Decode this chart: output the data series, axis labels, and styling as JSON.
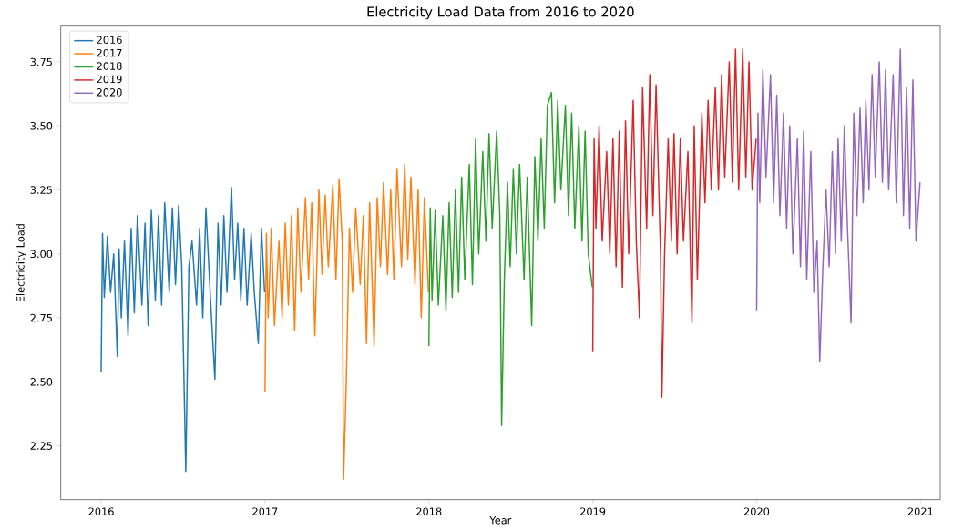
{
  "chart_data": {
    "type": "line",
    "title": "Electricity Load Data from 2016 to 2020",
    "xlabel": "Year",
    "ylabel": "Electricity Load",
    "xlim": [
      "2015-10-03",
      "2021-02-14"
    ],
    "ylim": [
      2.04,
      3.89
    ],
    "xticks": [
      {
        "value": "2016-01-01",
        "label": "2016"
      },
      {
        "value": "2017-01-01",
        "label": "2017"
      },
      {
        "value": "2018-01-01",
        "label": "2018"
      },
      {
        "value": "2019-01-01",
        "label": "2019"
      },
      {
        "value": "2020-01-01",
        "label": "2020"
      },
      {
        "value": "2021-01-01",
        "label": "2021"
      }
    ],
    "yticks": [
      2.25,
      {
        "value": 2.5,
        "label": "2.50"
      },
      2.75,
      {
        "value": 3.0,
        "label": "3.00"
      },
      3.25,
      {
        "value": 3.5,
        "label": "3.50"
      },
      3.75
    ],
    "legend": "top left",
    "marker": "none",
    "line_style": "solid",
    "series": [
      {
        "name": "2016",
        "color": "#1f77b4",
        "x": [
          "2016-01-01",
          "2016-01-04",
          "2016-01-08",
          "2016-01-15",
          "2016-01-22",
          "2016-01-29",
          "2016-02-06",
          "2016-02-10",
          "2016-02-15",
          "2016-02-22",
          "2016-03-01",
          "2016-03-08",
          "2016-03-15",
          "2016-03-22",
          "2016-04-01",
          "2016-04-08",
          "2016-04-15",
          "2016-04-22",
          "2016-05-01",
          "2016-05-08",
          "2016-05-15",
          "2016-05-22",
          "2016-06-01",
          "2016-06-08",
          "2016-06-15",
          "2016-06-22",
          "2016-06-29",
          "2016-07-08",
          "2016-07-15",
          "2016-07-22",
          "2016-08-01",
          "2016-08-08",
          "2016-08-15",
          "2016-08-22",
          "2016-09-01",
          "2016-09-11",
          "2016-09-18",
          "2016-09-25",
          "2016-10-01",
          "2016-10-08",
          "2016-10-18",
          "2016-10-25",
          "2016-11-01",
          "2016-11-08",
          "2016-11-15",
          "2016-11-22",
          "2016-12-01",
          "2016-12-08",
          "2016-12-17",
          "2016-12-24",
          "2016-12-31"
        ],
        "values": [
          2.54,
          3.08,
          2.83,
          3.07,
          2.85,
          3.0,
          2.6,
          3.02,
          2.75,
          3.05,
          2.68,
          3.1,
          2.77,
          3.15,
          2.8,
          3.12,
          2.72,
          3.17,
          2.82,
          3.15,
          2.8,
          3.2,
          2.85,
          3.18,
          2.88,
          3.19,
          2.95,
          2.15,
          2.95,
          3.05,
          2.8,
          3.1,
          2.75,
          3.18,
          2.83,
          2.51,
          3.12,
          2.8,
          3.15,
          2.85,
          3.26,
          2.9,
          3.12,
          2.82,
          3.1,
          2.8,
          3.08,
          2.85,
          2.65,
          3.1,
          2.85
        ]
      },
      {
        "name": "2017",
        "color": "#ff7f0e",
        "x": [
          "2017-01-01",
          "2017-01-04",
          "2017-01-08",
          "2017-01-15",
          "2017-01-22",
          "2017-02-01",
          "2017-02-08",
          "2017-02-15",
          "2017-02-22",
          "2017-03-01",
          "2017-03-08",
          "2017-03-15",
          "2017-03-22",
          "2017-04-01",
          "2017-04-08",
          "2017-04-15",
          "2017-04-22",
          "2017-05-01",
          "2017-05-08",
          "2017-05-15",
          "2017-05-22",
          "2017-06-01",
          "2017-06-08",
          "2017-06-15",
          "2017-06-22",
          "2017-06-25",
          "2017-07-01",
          "2017-07-08",
          "2017-07-15",
          "2017-07-22",
          "2017-08-01",
          "2017-08-08",
          "2017-08-15",
          "2017-08-22",
          "2017-09-01",
          "2017-09-08",
          "2017-09-15",
          "2017-09-22",
          "2017-10-01",
          "2017-10-08",
          "2017-10-15",
          "2017-10-22",
          "2017-11-01",
          "2017-11-08",
          "2017-11-15",
          "2017-11-22",
          "2017-12-01",
          "2017-12-08",
          "2017-12-15",
          "2017-12-22",
          "2017-12-31"
        ],
        "values": [
          2.46,
          3.08,
          2.75,
          3.1,
          2.72,
          3.05,
          2.75,
          3.12,
          2.8,
          3.15,
          2.7,
          3.18,
          2.85,
          3.22,
          2.9,
          3.2,
          2.68,
          3.25,
          2.92,
          3.23,
          2.95,
          3.27,
          2.9,
          3.29,
          3.05,
          2.12,
          2.5,
          3.1,
          2.85,
          3.18,
          2.88,
          3.15,
          2.65,
          3.2,
          2.64,
          3.22,
          2.95,
          3.28,
          2.92,
          3.25,
          2.9,
          3.33,
          2.95,
          3.35,
          2.98,
          3.3,
          2.88,
          3.25,
          2.75,
          3.22,
          2.85
        ]
      },
      {
        "name": "2018",
        "color": "#2ca02c",
        "x": [
          "2018-01-01",
          "2018-01-04",
          "2018-01-08",
          "2018-01-15",
          "2018-01-22",
          "2018-02-01",
          "2018-02-08",
          "2018-02-15",
          "2018-02-22",
          "2018-03-01",
          "2018-03-08",
          "2018-03-15",
          "2018-03-22",
          "2018-04-01",
          "2018-04-08",
          "2018-04-15",
          "2018-04-22",
          "2018-05-01",
          "2018-05-08",
          "2018-05-15",
          "2018-05-22",
          "2018-06-01",
          "2018-06-08",
          "2018-06-12",
          "2018-06-18",
          "2018-06-25",
          "2018-07-01",
          "2018-07-08",
          "2018-07-15",
          "2018-07-22",
          "2018-08-01",
          "2018-08-08",
          "2018-08-18",
          "2018-08-25",
          "2018-09-01",
          "2018-09-08",
          "2018-09-15",
          "2018-09-22",
          "2018-10-01",
          "2018-10-08",
          "2018-10-15",
          "2018-10-22",
          "2018-11-01",
          "2018-11-08",
          "2018-11-15",
          "2018-11-22",
          "2018-12-01",
          "2018-12-08",
          "2018-12-15",
          "2018-12-22",
          "2018-12-31"
        ],
        "values": [
          2.64,
          3.18,
          2.82,
          3.17,
          2.8,
          3.15,
          2.78,
          3.2,
          2.83,
          3.25,
          2.85,
          3.3,
          2.9,
          3.35,
          2.88,
          3.45,
          3.0,
          3.4,
          3.05,
          3.47,
          3.1,
          3.48,
          3.15,
          2.33,
          2.9,
          3.28,
          2.95,
          3.33,
          3.0,
          3.35,
          2.9,
          3.3,
          2.72,
          3.38,
          3.05,
          3.45,
          3.1,
          3.58,
          3.63,
          3.2,
          3.6,
          3.25,
          3.58,
          3.15,
          3.55,
          3.1,
          3.5,
          3.05,
          3.48,
          3.0,
          2.87
        ]
      },
      {
        "name": "2019",
        "color": "#d62728",
        "x": [
          "2019-01-01",
          "2019-01-04",
          "2019-01-08",
          "2019-01-15",
          "2019-01-22",
          "2019-02-01",
          "2019-02-08",
          "2019-02-15",
          "2019-02-22",
          "2019-03-01",
          "2019-03-08",
          "2019-03-15",
          "2019-03-22",
          "2019-04-01",
          "2019-04-08",
          "2019-04-15",
          "2019-04-22",
          "2019-05-01",
          "2019-05-08",
          "2019-05-15",
          "2019-05-22",
          "2019-06-01",
          "2019-06-04",
          "2019-06-10",
          "2019-06-18",
          "2019-06-25",
          "2019-07-01",
          "2019-07-08",
          "2019-07-15",
          "2019-07-22",
          "2019-08-01",
          "2019-08-10",
          "2019-08-15",
          "2019-08-22",
          "2019-09-01",
          "2019-09-08",
          "2019-09-15",
          "2019-09-22",
          "2019-10-01",
          "2019-10-08",
          "2019-10-15",
          "2019-10-22",
          "2019-11-01",
          "2019-11-08",
          "2019-11-15",
          "2019-11-22",
          "2019-12-01",
          "2019-12-08",
          "2019-12-15",
          "2019-12-22",
          "2019-12-31"
        ],
        "values": [
          2.62,
          3.45,
          3.1,
          3.5,
          3.05,
          3.4,
          3.0,
          3.45,
          2.95,
          3.48,
          2.87,
          3.52,
          3.0,
          3.6,
          3.05,
          2.75,
          3.65,
          3.1,
          3.7,
          3.15,
          3.66,
          3.0,
          2.44,
          3.0,
          3.45,
          3.05,
          3.47,
          3.0,
          3.45,
          3.05,
          3.4,
          2.73,
          3.5,
          2.9,
          3.55,
          3.2,
          3.6,
          3.25,
          3.65,
          3.25,
          3.7,
          3.3,
          3.75,
          3.28,
          3.8,
          3.25,
          3.8,
          3.3,
          3.75,
          3.25,
          3.45
        ]
      },
      {
        "name": "2020",
        "color": "#9467bd",
        "x": [
          "2020-01-01",
          "2020-01-04",
          "2020-01-08",
          "2020-01-15",
          "2020-01-22",
          "2020-02-01",
          "2020-02-08",
          "2020-02-15",
          "2020-02-22",
          "2020-03-01",
          "2020-03-08",
          "2020-03-15",
          "2020-03-22",
          "2020-04-01",
          "2020-04-08",
          "2020-04-15",
          "2020-04-22",
          "2020-05-01",
          "2020-05-08",
          "2020-05-15",
          "2020-05-21",
          "2020-05-28",
          "2020-06-04",
          "2020-06-11",
          "2020-06-18",
          "2020-06-25",
          "2020-07-01",
          "2020-07-08",
          "2020-07-15",
          "2020-07-22",
          "2020-07-30",
          "2020-08-05",
          "2020-08-12",
          "2020-08-19",
          "2020-08-26",
          "2020-09-01",
          "2020-09-08",
          "2020-09-15",
          "2020-09-22",
          "2020-10-01",
          "2020-10-08",
          "2020-10-15",
          "2020-10-22",
          "2020-11-01",
          "2020-11-08",
          "2020-11-17",
          "2020-11-24",
          "2020-12-01",
          "2020-12-08",
          "2020-12-15",
          "2020-12-22",
          "2020-12-31"
        ],
        "values": [
          2.78,
          3.55,
          3.2,
          3.72,
          3.3,
          3.7,
          3.2,
          3.62,
          3.15,
          3.55,
          3.1,
          3.5,
          3.0,
          3.45,
          2.95,
          3.48,
          2.9,
          3.4,
          2.85,
          3.05,
          2.58,
          2.95,
          3.25,
          2.95,
          3.4,
          3.0,
          3.45,
          3.05,
          3.5,
          3.1,
          2.73,
          3.55,
          3.15,
          3.57,
          3.2,
          3.6,
          3.25,
          3.7,
          3.3,
          3.75,
          3.28,
          3.72,
          3.25,
          3.7,
          3.2,
          3.8,
          3.15,
          3.65,
          3.1,
          3.68,
          3.05,
          3.28
        ]
      }
    ]
  }
}
